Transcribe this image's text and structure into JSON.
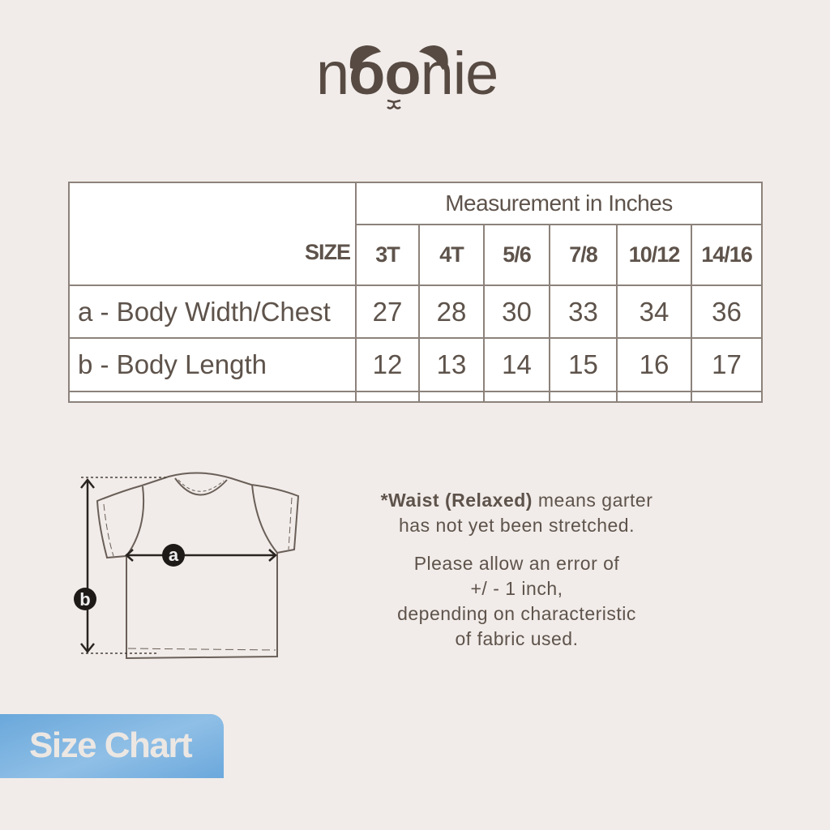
{
  "logo": {
    "text_parts": [
      "n",
      "oo",
      "nie"
    ],
    "brand_color": "#574a42"
  },
  "table": {
    "header_group": "Measurement in Inches",
    "size_label": "SIZE",
    "sizes": [
      "3T",
      "4T",
      "5/6",
      "7/8",
      "10/12",
      "14/16"
    ],
    "rows": [
      {
        "label": "a - Body Width/Chest",
        "values": [
          "27",
          "28",
          "30",
          "33",
          "34",
          "36"
        ]
      },
      {
        "label": "b - Body Length",
        "values": [
          "12",
          "13",
          "14",
          "15",
          "16",
          "17"
        ]
      }
    ]
  },
  "diagram": {
    "label_a": "a",
    "label_b": "b"
  },
  "notes": {
    "waist_bold": "*Waist (Relaxed)",
    "waist_rest": " means garter",
    "waist_line2": "has not yet been stretched.",
    "error_lines": [
      "Please allow an error of",
      "+/ - 1 inch,",
      "depending on characteristic",
      "of fabric used."
    ]
  },
  "badge": {
    "label": "Size Chart",
    "color": "#6ba8dc"
  }
}
